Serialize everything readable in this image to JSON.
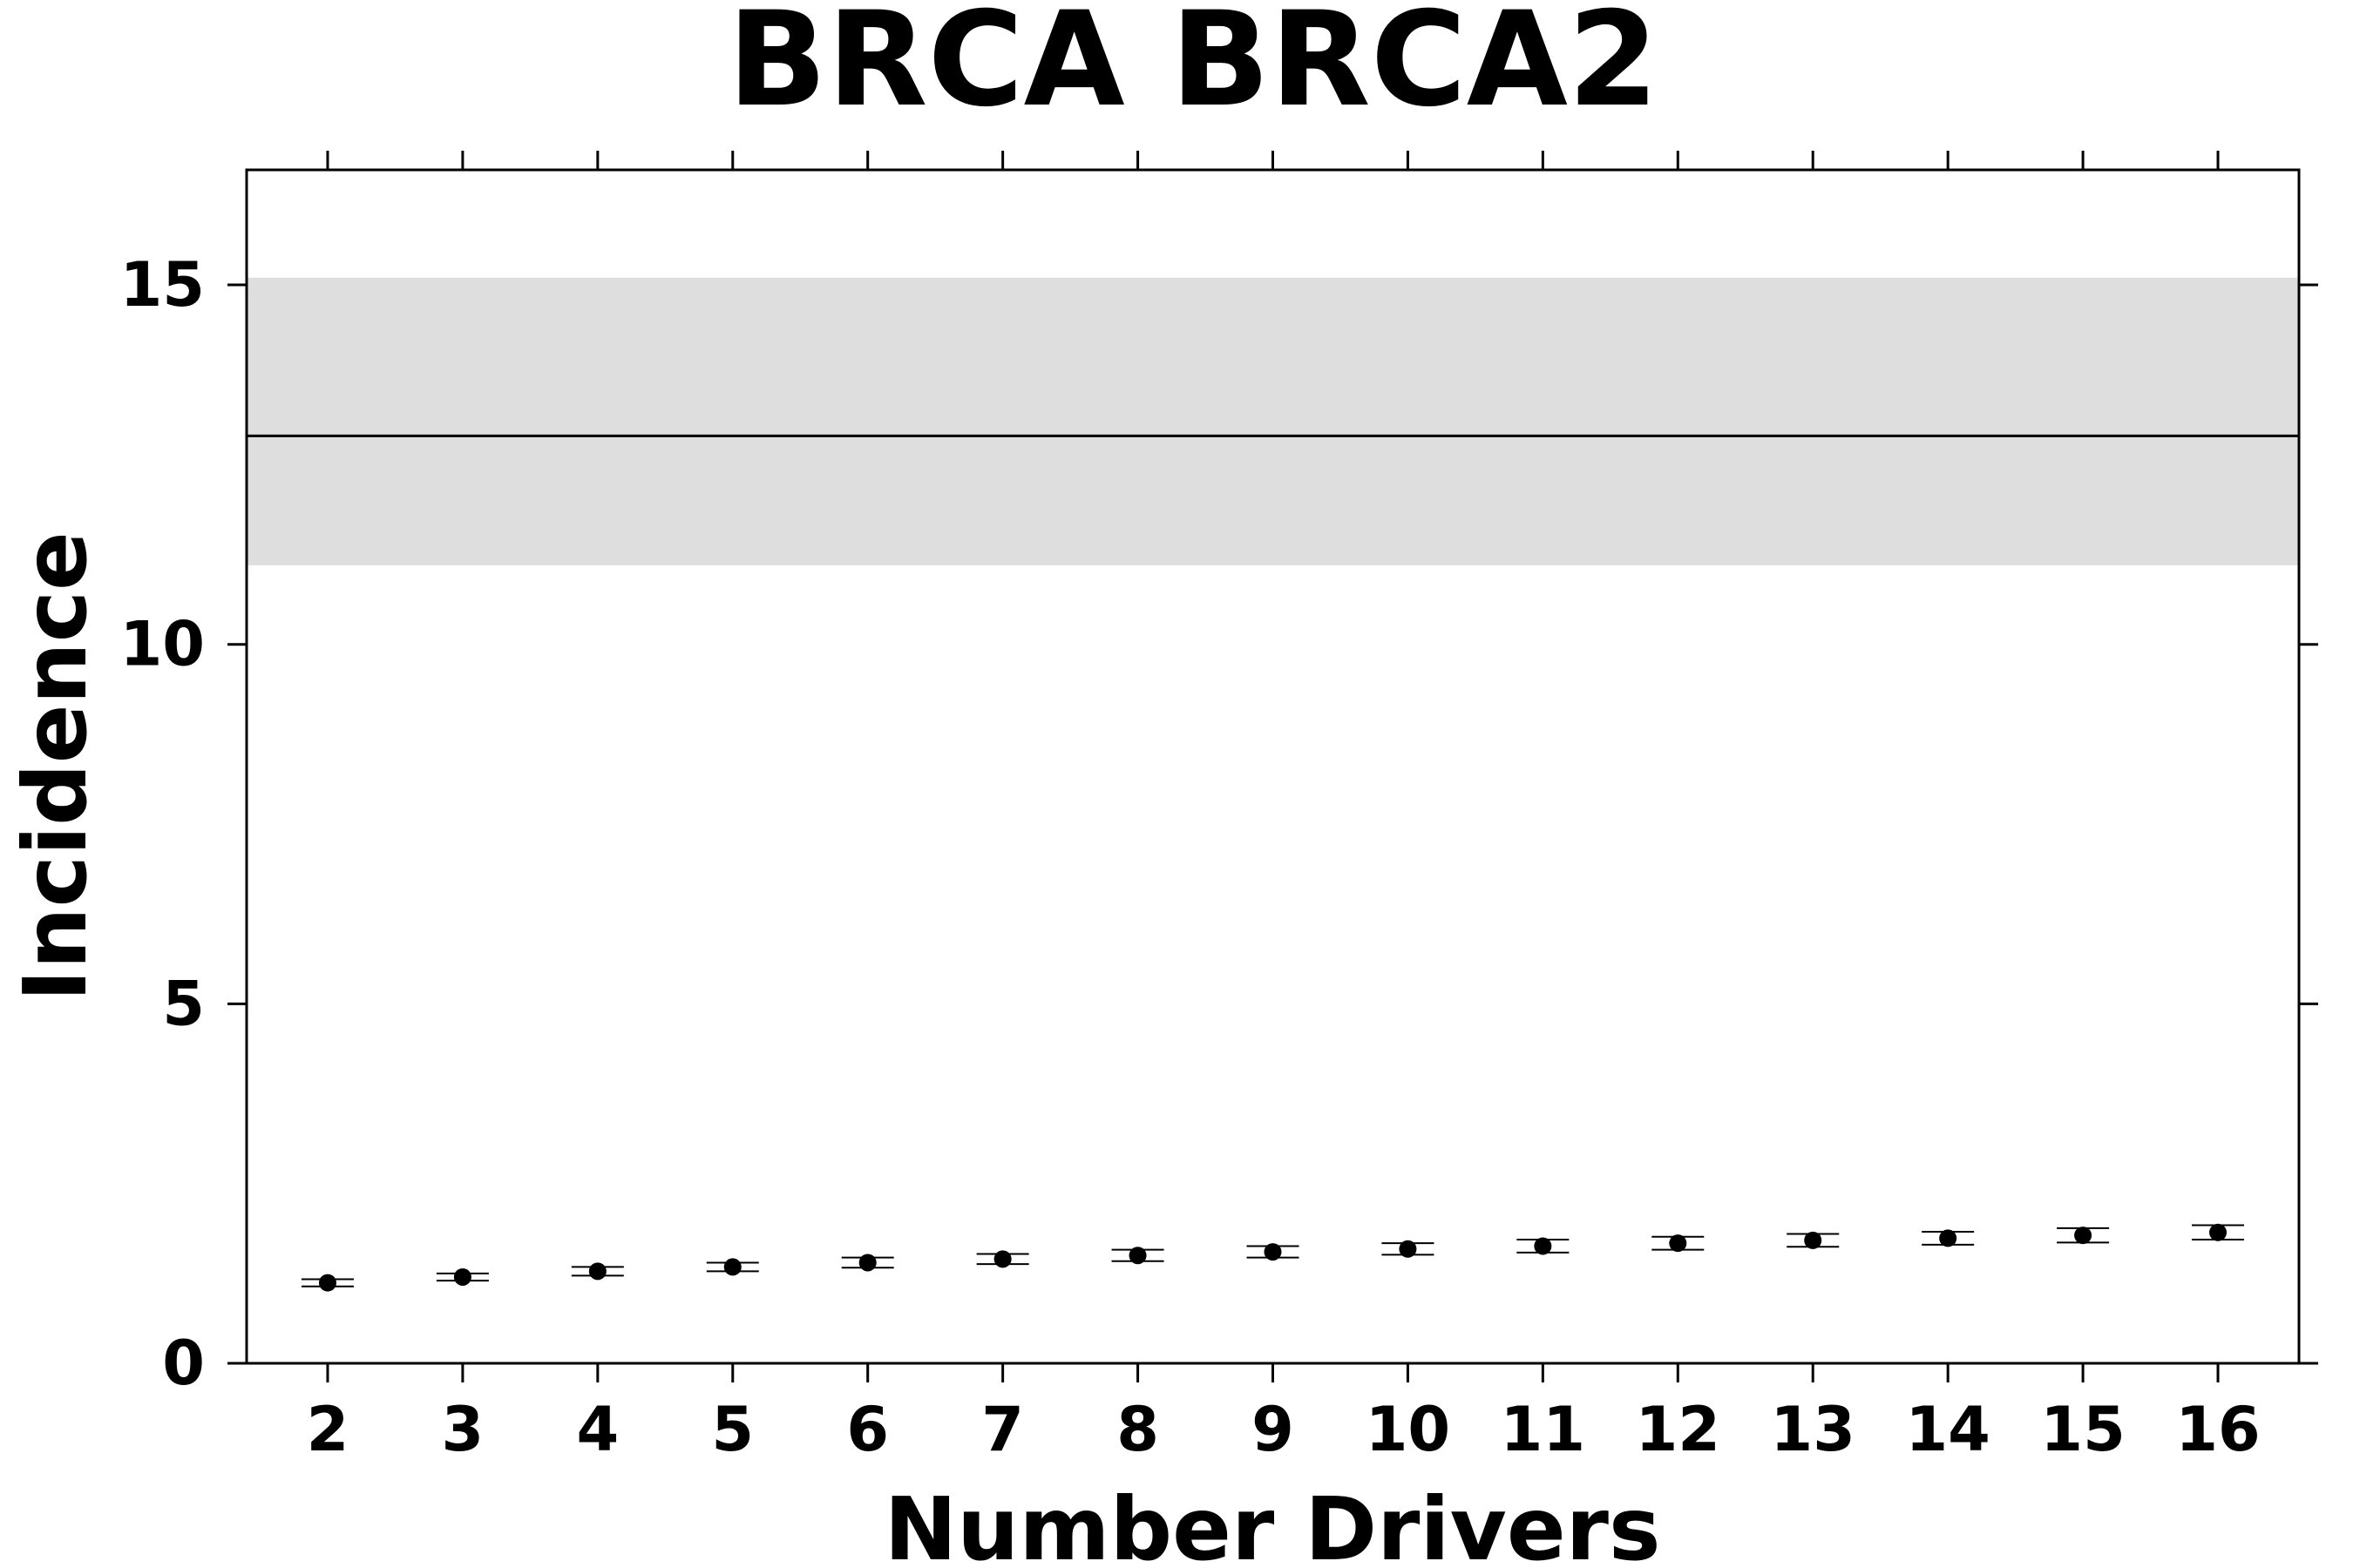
{
  "chart_data": {
    "type": "scatter",
    "title": "BRCA BRCA2",
    "xlabel": "Number Drivers",
    "ylabel": "Incidence",
    "ylim": [
      0,
      16.6
    ],
    "y_ticks": [
      0,
      5,
      10,
      15
    ],
    "x": [
      2,
      3,
      4,
      5,
      6,
      7,
      8,
      9,
      10,
      11,
      12,
      13,
      14,
      15,
      16
    ],
    "y": [
      1.12,
      1.2,
      1.28,
      1.34,
      1.4,
      1.45,
      1.5,
      1.55,
      1.59,
      1.63,
      1.67,
      1.71,
      1.74,
      1.78,
      1.82
    ],
    "y_error": [
      0.05,
      0.05,
      0.06,
      0.06,
      0.07,
      0.07,
      0.08,
      0.08,
      0.08,
      0.09,
      0.09,
      0.09,
      0.09,
      0.1,
      0.1
    ],
    "reference": {
      "value": 12.9,
      "lower": 11.1,
      "upper": 15.1
    },
    "grid": false,
    "legend": "none",
    "colors": {
      "points": "#000000",
      "band": "#dedede",
      "reference_line": "#000000"
    }
  }
}
